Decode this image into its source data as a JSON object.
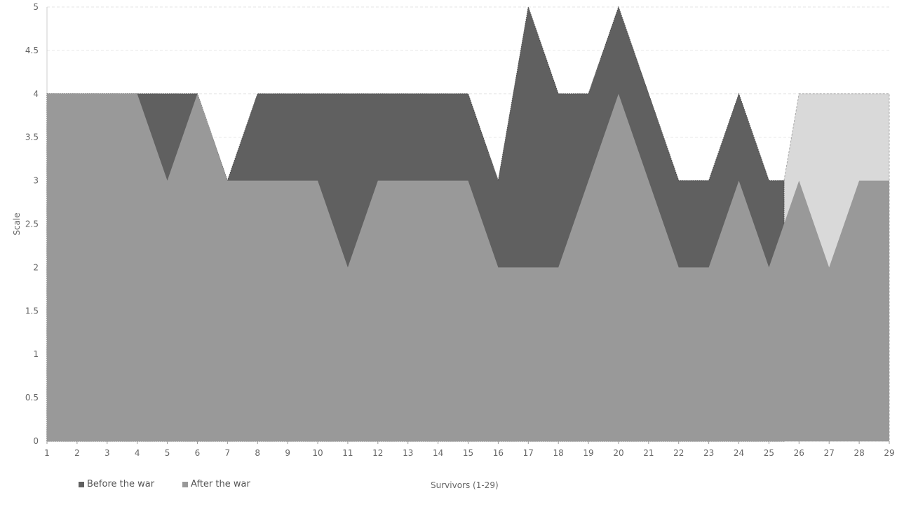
{
  "chart_data": {
    "type": "area",
    "xlabel": "Survivors (1-29)",
    "ylabel": "Scale",
    "ylim": [
      0,
      5
    ],
    "xlim": [
      1,
      29
    ],
    "yticks": [
      "0",
      "0.5",
      "1",
      "1.5",
      "2",
      "2.5",
      "3",
      "3.5",
      "4",
      "4.5",
      "5"
    ],
    "x": [
      1,
      2,
      3,
      4,
      5,
      6,
      7,
      8,
      9,
      10,
      11,
      12,
      13,
      14,
      15,
      16,
      17,
      18,
      19,
      20,
      21,
      22,
      23,
      24,
      25,
      26,
      27,
      28,
      29
    ],
    "series": [
      {
        "name": "Before the war",
        "color": "#606060",
        "values": [
          4,
          4,
          4,
          4,
          4,
          4,
          3,
          4,
          4,
          4,
          4,
          4,
          4,
          4,
          4,
          3,
          5,
          4,
          4,
          5,
          4,
          3,
          3,
          4,
          3,
          4,
          4,
          4,
          4
        ]
      },
      {
        "name": "After the war",
        "color": "#999999",
        "values": [
          4,
          4,
          4,
          4,
          3,
          4,
          3,
          3,
          3,
          3,
          2,
          3,
          3,
          3,
          3,
          2,
          2,
          2,
          3,
          4,
          3,
          2,
          2,
          3,
          2,
          3,
          2,
          3,
          3
        ]
      }
    ],
    "highlight_color": "#d9d9d9",
    "grid": "horizontal dashed",
    "legend_position": "bottom-left"
  }
}
